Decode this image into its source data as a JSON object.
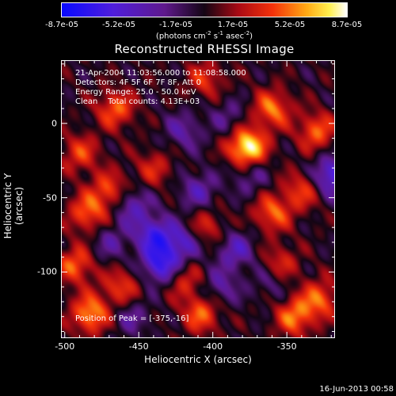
{
  "colorbar": {
    "ticks": [
      "-8.7e-05",
      "-5.2e-05",
      "-1.7e-05",
      "1.7e-05",
      "5.2e-05",
      "8.7e-05"
    ],
    "units_base": "(photons cm",
    "units_exp1": "-2",
    "units_mid": " s",
    "units_exp2": "-1",
    "units_mid2": " asec",
    "units_exp3": "-2",
    "units_end": ")"
  },
  "title": "Reconstructed RHESSI Image",
  "info": {
    "line1": "21-Apr-2004 11:03:56.000 to 11:08:58.000",
    "line2": "Detectors: 4F 5F 6F 7F 8F, Att 0",
    "line3": "Energy Range: 25.0 - 50.0 keV",
    "line4": "Clean    Total counts: 4.13E+03",
    "peak": "Position of Peak = [-375,-16]"
  },
  "footer": "16-Jun-2013 00:58",
  "chart_data": {
    "type": "heatmap",
    "title": "Reconstructed RHESSI Image",
    "xlabel": "Heliocentric X (arcsec)",
    "ylabel": "Heliocentric Y (arcsec)",
    "xlim": [
      -502,
      -318
    ],
    "ylim": [
      -144,
      42
    ],
    "xticks": [
      -500,
      -450,
      -400,
      -350
    ],
    "yticks": [
      0,
      -50,
      -100
    ],
    "xtick_labels": [
      "-500",
      "-450",
      "-400",
      "-350"
    ],
    "ytick_labels": [
      "0",
      "-50",
      "-100"
    ],
    "colorbar_range": [
      -8.7e-05,
      8.7e-05
    ],
    "peak_position": [
      -375,
      -16
    ],
    "features": [
      {
        "x": -377,
        "y": -16,
        "v": 1.0
      },
      {
        "x": -466,
        "y": 10,
        "v": 0.55
      },
      {
        "x": -360,
        "y": 10,
        "v": 0.6
      },
      {
        "x": -330,
        "y": -5,
        "v": 0.55
      },
      {
        "x": -490,
        "y": -20,
        "v": 0.45
      },
      {
        "x": -470,
        "y": -45,
        "v": 0.5
      },
      {
        "x": -485,
        "y": -60,
        "v": 0.55
      },
      {
        "x": -493,
        "y": -95,
        "v": 0.55
      },
      {
        "x": -483,
        "y": -128,
        "v": 0.7
      },
      {
        "x": -462,
        "y": -110,
        "v": 0.45
      },
      {
        "x": -408,
        "y": -128,
        "v": 0.55
      },
      {
        "x": -420,
        "y": -105,
        "v": 0.4
      },
      {
        "x": -405,
        "y": -70,
        "v": 0.4
      },
      {
        "x": -360,
        "y": -60,
        "v": 0.55
      },
      {
        "x": -340,
        "y": -45,
        "v": 0.45
      },
      {
        "x": -355,
        "y": -95,
        "v": 0.45
      },
      {
        "x": -328,
        "y": -118,
        "v": 0.55
      },
      {
        "x": -345,
        "y": -130,
        "v": 0.6
      },
      {
        "x": -440,
        "y": -30,
        "v": 0.35
      },
      {
        "x": -405,
        "y": 30,
        "v": 0.4
      },
      {
        "x": -440,
        "y": -75,
        "v": -0.65
      },
      {
        "x": -420,
        "y": -80,
        "v": -0.5
      },
      {
        "x": -435,
        "y": -95,
        "v": -0.75
      },
      {
        "x": -410,
        "y": -45,
        "v": -0.4
      },
      {
        "x": -375,
        "y": -35,
        "v": -0.3
      },
      {
        "x": -385,
        "y": -85,
        "v": -0.45
      },
      {
        "x": -320,
        "y": -35,
        "v": -0.7
      },
      {
        "x": -420,
        "y": -5,
        "v": -0.35
      },
      {
        "x": -455,
        "y": -55,
        "v": -0.45
      },
      {
        "x": -395,
        "y": -110,
        "v": -0.35
      },
      {
        "x": -470,
        "y": -80,
        "v": -0.3
      },
      {
        "x": -360,
        "y": -105,
        "v": -0.3
      },
      {
        "x": -390,
        "y": 5,
        "v": -0.25
      },
      {
        "x": -455,
        "y": -130,
        "v": -0.3
      }
    ]
  }
}
